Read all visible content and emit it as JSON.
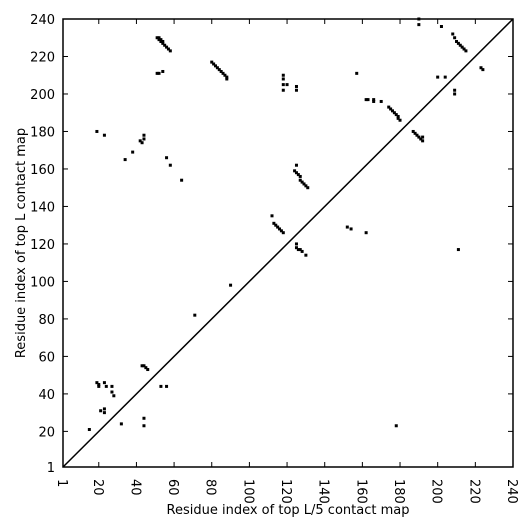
{
  "chart_data": {
    "type": "scatter",
    "xlabel": "Residue index of top L/5 contact map",
    "ylabel": "Residue index of top L contact map",
    "color": "#000000",
    "xlim": [
      1,
      240
    ],
    "ylim": [
      1,
      240
    ],
    "xticks": [
      1,
      20,
      40,
      60,
      80,
      100,
      120,
      140,
      160,
      180,
      200,
      220,
      240
    ],
    "yticks": [
      1,
      20,
      40,
      60,
      80,
      100,
      120,
      140,
      160,
      180,
      200,
      220,
      240
    ],
    "diagonal": true,
    "x": [
      51,
      52,
      52,
      53,
      53,
      54,
      54,
      55,
      56,
      57,
      58,
      51,
      52,
      54,
      80,
      81,
      82,
      83,
      84,
      85,
      86,
      87,
      88,
      88,
      118,
      118,
      118,
      120,
      118,
      125,
      125,
      157,
      162,
      163,
      166,
      166,
      170,
      174,
      175,
      176,
      177,
      178,
      179,
      179,
      180,
      187,
      188,
      189,
      190,
      191,
      192,
      192,
      190,
      190,
      202,
      208,
      209,
      210,
      211,
      212,
      213,
      214,
      215,
      209,
      209,
      200,
      204,
      223,
      224,
      211,
      19,
      23,
      34,
      38,
      42,
      43,
      44,
      44,
      56,
      58,
      64,
      125,
      124,
      125,
      126,
      127,
      127,
      128,
      129,
      130,
      131,
      112,
      113,
      114,
      115,
      116,
      117,
      118,
      125,
      125,
      126,
      127,
      128,
      130,
      152,
      154,
      162,
      90,
      71,
      43,
      44,
      45,
      46,
      19,
      20,
      20,
      23,
      24,
      27,
      27,
      28,
      53,
      56,
      21,
      23,
      23,
      32,
      15,
      44,
      44,
      178
    ],
    "values": [
      230,
      229,
      230,
      228,
      229,
      227,
      228,
      226,
      225,
      224,
      223,
      211,
      211,
      212,
      217,
      216,
      215,
      214,
      213,
      212,
      211,
      210,
      209,
      208,
      210,
      208,
      205,
      205,
      202,
      204,
      202,
      211,
      197,
      197,
      197,
      196,
      196,
      193,
      192,
      191,
      190,
      189,
      188,
      187,
      186,
      180,
      179,
      178,
      177,
      176,
      175,
      177,
      240,
      237,
      236,
      232,
      230,
      228,
      227,
      226,
      225,
      224,
      223,
      202,
      200,
      209,
      209,
      214,
      213,
      117,
      180,
      178,
      165,
      169,
      175,
      174,
      176,
      178,
      166,
      162,
      154,
      162,
      159,
      158,
      157,
      156,
      154,
      153,
      152,
      151,
      150,
      135,
      131,
      130,
      129,
      128,
      127,
      126,
      120,
      118,
      117,
      117,
      116,
      114,
      129,
      128,
      126,
      98,
      82,
      55,
      55,
      54,
      53,
      46,
      45,
      44,
      46,
      44,
      44,
      41,
      39,
      44,
      44,
      31,
      32,
      30,
      24,
      21,
      27,
      23,
      23
    ]
  }
}
